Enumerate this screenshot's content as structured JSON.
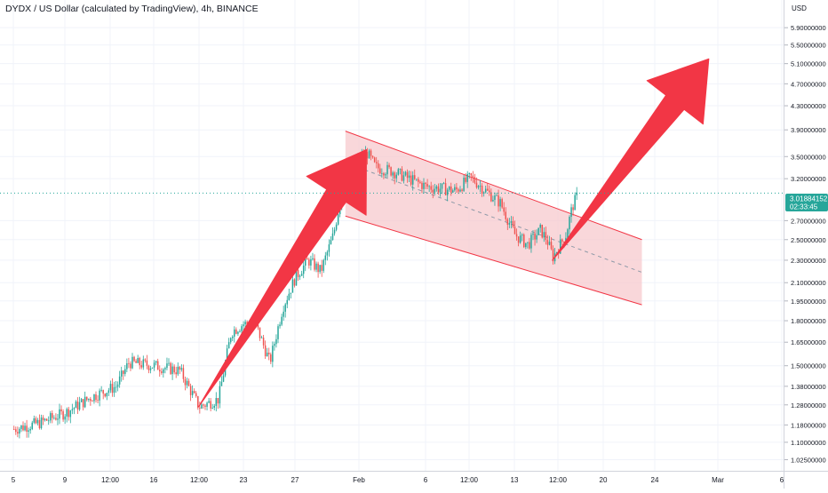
{
  "header": {
    "title": "DYDX / US Dollar (calculated by TradingView), 4h, BINANCE"
  },
  "price_axis": {
    "currency": "USD",
    "current_price": "3.01884152",
    "countdown": "02:33:45"
  },
  "colors": {
    "up": "#26a69a",
    "down": "#ef5350",
    "arrow": "#f23645",
    "channel_fill": "#f7c9cd",
    "channel_line": "#f23645",
    "price_tag": "#26a69a",
    "grid": "#f0f3fa"
  },
  "drawings": [
    {
      "type": "arrow",
      "name": "arrow-1",
      "from": [
        "Jan 19 12:00",
        1.27
      ],
      "to": [
        "Feb 1 12:00",
        3.6
      ]
    },
    {
      "type": "arrow",
      "name": "arrow-2",
      "from": [
        "Feb 14",
        2.3
      ],
      "to": [
        "Feb 28",
        5.2
      ]
    },
    {
      "type": "channel",
      "name": "descending-channel",
      "upper": [
        [
          "Jan 31",
          3.88
        ],
        [
          "Feb 21",
          2.5
        ]
      ],
      "lower": [
        [
          "Jan 31",
          2.75
        ],
        [
          "Feb 21",
          1.92
        ]
      ],
      "median": [
        [
          "Feb 1",
          3.35
        ],
        [
          "Feb 21",
          2.19
        ]
      ]
    }
  ],
  "chart_data": {
    "type": "candlestick",
    "title": "DYDX / US Dollar (calculated by TradingView), 4h, BINANCE",
    "symbol": "DYDX",
    "interval": "4h",
    "exchange": "BINANCE",
    "y_scale": "log",
    "ylim": [
      0.98,
      6.6
    ],
    "y_ticks": [
      "5.90000000",
      "5.50000000",
      "5.10000000",
      "4.70000000",
      "4.30000000",
      "3.90000000",
      "3.50000000",
      "3.20000000",
      "2.70000000",
      "2.50000000",
      "2.30000000",
      "2.10000000",
      "1.95000000",
      "1.80000000",
      "1.65000000",
      "1.50000000",
      "1.38000000",
      "1.28000000",
      "1.18000000",
      "1.10000000",
      "1.02500000"
    ],
    "x_ticks": [
      "5",
      "9",
      "12:00",
      "16",
      "12:00",
      "23",
      "27",
      "Feb",
      "6",
      "12:00",
      "13",
      "12:00",
      "20",
      "24",
      "Mar",
      "6"
    ],
    "last_price": 3.01884152,
    "close_path": [
      [
        "Jan 5",
        1.16
      ],
      [
        "Jan 7",
        1.19
      ],
      [
        "Jan 9",
        1.24
      ],
      [
        "Jan 11",
        1.32
      ],
      [
        "Jan 13",
        1.38
      ],
      [
        "Jan 14",
        1.52
      ],
      [
        "Jan 16",
        1.5
      ],
      [
        "Jan 18",
        1.47
      ],
      [
        "Jan 19 12:00",
        1.27
      ],
      [
        "Jan 21",
        1.31
      ],
      [
        "Jan 22",
        1.72
      ],
      [
        "Jan 23",
        1.78
      ],
      [
        "Jan 24",
        1.75
      ],
      [
        "Jan 25",
        1.52
      ],
      [
        "Jan 26",
        1.9
      ],
      [
        "Jan 27",
        2.15
      ],
      [
        "Jan 28",
        2.3
      ],
      [
        "Jan 29",
        2.2
      ],
      [
        "Jan 30",
        2.55
      ],
      [
        "Jan 31",
        3.3
      ],
      [
        "Feb 1 12:00",
        3.55
      ],
      [
        "Feb 2",
        3.35
      ],
      [
        "Feb 3",
        3.3
      ],
      [
        "Feb 5",
        3.1
      ],
      [
        "Feb 7",
        3.05
      ],
      [
        "Feb 8",
        3.22
      ],
      [
        "Feb 9",
        3.05
      ],
      [
        "Feb 10",
        2.9
      ],
      [
        "Feb 11",
        2.55
      ],
      [
        "Feb 12",
        2.45
      ],
      [
        "Feb 13",
        2.6
      ],
      [
        "Feb 13 12:00",
        2.5
      ],
      [
        "Feb 14",
        2.33
      ],
      [
        "Feb 15",
        2.55
      ],
      [
        "Feb 15 12:00",
        2.85
      ],
      [
        "Feb 16",
        3.02
      ]
    ]
  }
}
